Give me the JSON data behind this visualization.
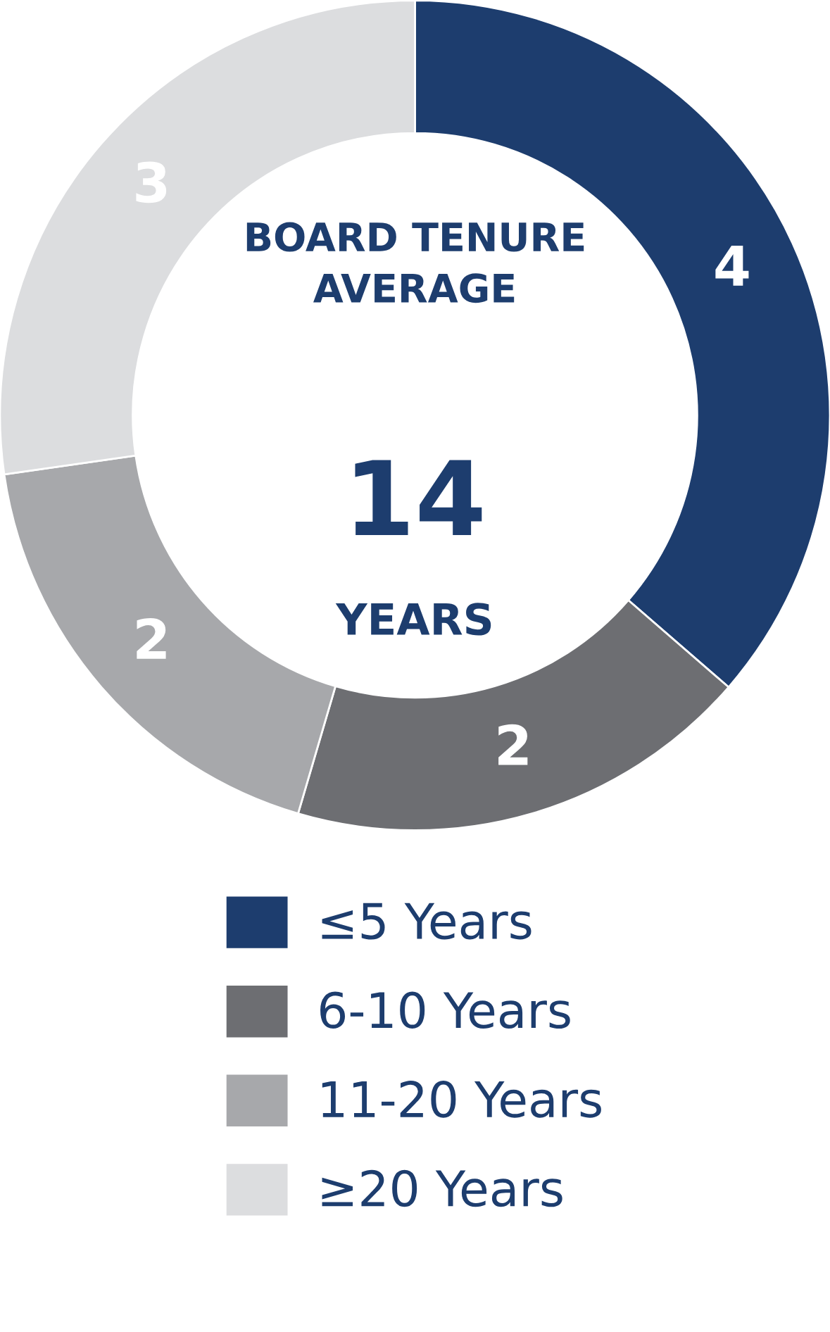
{
  "chart_data": {
    "type": "donut",
    "title": "BOARD TENURE\nAVERAGE",
    "annotations": [
      "14",
      "YEARS"
    ],
    "categories": [
      "≤5 Years",
      "6-10 Years",
      "11-20 Years",
      "≥20 Years"
    ],
    "values": [
      4,
      2,
      2,
      3
    ],
    "colors": [
      "#1d3d6e",
      "#6d6e72",
      "#a7a8ab",
      "#dcdddf"
    ],
    "data_labels": true,
    "legend": "bottom"
  }
}
